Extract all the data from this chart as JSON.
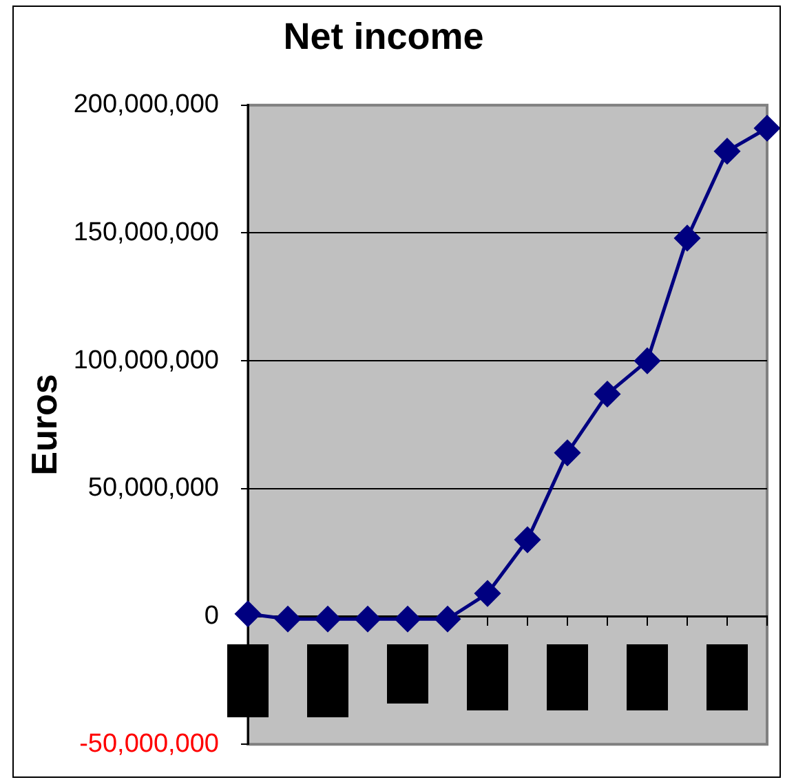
{
  "chart_data": {
    "type": "line",
    "title": "Net income",
    "ylabel": "Euros",
    "categories": [
      null,
      null,
      null,
      null,
      null,
      null,
      null,
      null,
      null,
      null,
      null,
      null,
      null,
      null
    ],
    "series": [
      {
        "color": "#000080",
        "values": [
          1000000,
          -1000000,
          -1000000,
          -1000000,
          -1000000,
          -1000000,
          9000000,
          30000000,
          64000000,
          87000000,
          100000000,
          148000000,
          182000000,
          191000000
        ]
      }
    ],
    "ylim": [
      -50000000,
      200000000
    ],
    "yticks": [
      {
        "value": -50000000,
        "label": "-50,000,000"
      },
      0,
      {
        "value": 50000000,
        "label": "50,000,000"
      },
      {
        "value": 100000000,
        "label": "100,000,000"
      },
      {
        "value": 150000000,
        "label": "150,000,000"
      },
      {
        "value": 200000000,
        "label": "200,000,000"
      }
    ],
    "grid": "y",
    "marker": "diamond",
    "line_style": "solid"
  }
}
